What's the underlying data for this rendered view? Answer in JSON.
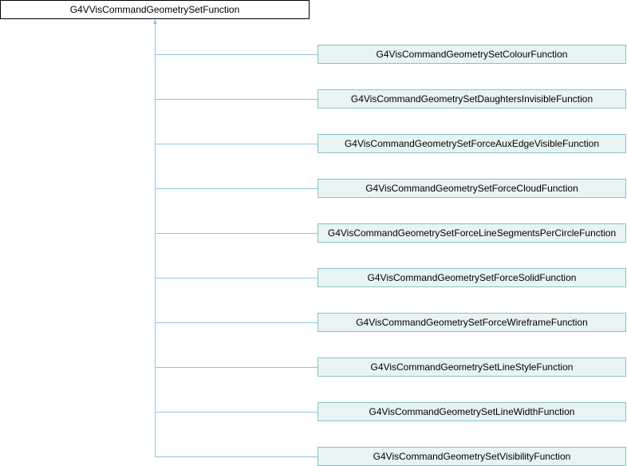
{
  "base_class": "G4VVisCommandGeometrySetFunction",
  "edge_color": "#8cc8e0",
  "children": [
    "G4VisCommandGeometrySetColourFunction",
    "G4VisCommandGeometrySetDaughtersInvisibleFunction",
    "G4VisCommandGeometrySetForceAuxEdgeVisibleFunction",
    "G4VisCommandGeometrySetForceCloudFunction",
    "G4VisCommandGeometrySetForceLineSegmentsPerCircleFunction",
    "G4VisCommandGeometrySetForceSolidFunction",
    "G4VisCommandGeometrySetForceWireframeFunction",
    "G4VisCommandGeometrySetLineStyleFunction",
    "G4VisCommandGeometrySetLineWidthFunction",
    "G4VisCommandGeometrySetVisibilityFunction"
  ]
}
